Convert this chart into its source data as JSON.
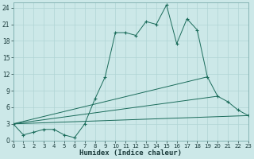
{
  "xlabel": "Humidex (Indice chaleur)",
  "bg_color": "#cce8e8",
  "grid_color": "#b0d4d4",
  "line_color": "#1a6b5a",
  "xlim": [
    0,
    23
  ],
  "ylim": [
    0,
    25
  ],
  "xticks": [
    0,
    1,
    2,
    3,
    4,
    5,
    6,
    7,
    8,
    9,
    10,
    11,
    12,
    13,
    14,
    15,
    16,
    17,
    18,
    19,
    20,
    21,
    22,
    23
  ],
  "yticks": [
    0,
    3,
    6,
    9,
    12,
    15,
    18,
    21,
    24
  ],
  "lines": [
    {
      "x": [
        0,
        1,
        2,
        3,
        4,
        5,
        6,
        7,
        8,
        9,
        10,
        11,
        12,
        13,
        14,
        15,
        16,
        17,
        18,
        19,
        20,
        21,
        22,
        23
      ],
      "y": [
        3,
        1,
        1.5,
        2,
        2,
        1,
        0.5,
        3,
        7.5,
        11.5,
        19.5,
        19.5,
        19,
        21.5,
        21,
        24.5,
        17.5,
        22,
        20,
        11.5,
        8,
        7,
        5.5,
        4.5
      ],
      "marker": "+"
    },
    {
      "x": [
        0,
        19
      ],
      "y": [
        3,
        11.5
      ],
      "marker": null
    },
    {
      "x": [
        0,
        23
      ],
      "y": [
        3,
        4.5
      ],
      "marker": null
    },
    {
      "x": [
        0,
        20
      ],
      "y": [
        3,
        8
      ],
      "marker": null
    }
  ]
}
